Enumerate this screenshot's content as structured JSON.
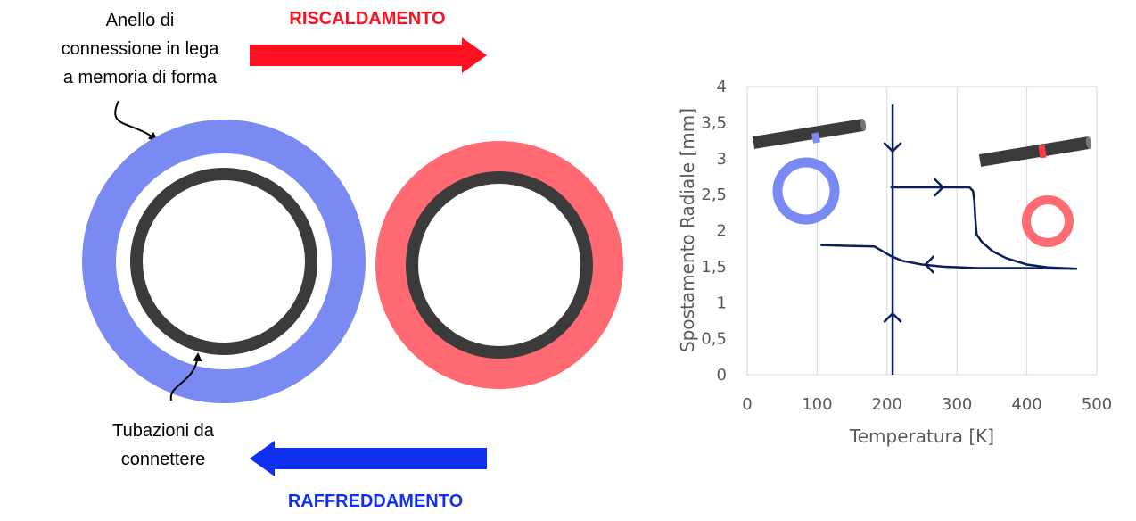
{
  "colors": {
    "cold_ring": "#7b8af2",
    "hot_ring": "#ff6a73",
    "pipe": "#3b3b3b",
    "heat_arrow": "#ff1020",
    "cool_arrow": "#1030f0",
    "curve": "#0b1f5c",
    "grid": "#d9d9d9",
    "axis_text": "#595959"
  },
  "labels": {
    "ring_label_lines": [
      "Anello di",
      "connessione in lega",
      "a memoria di forma"
    ],
    "pipe_label_lines": [
      "Tubazioni da",
      "connettere"
    ],
    "heating": "RISCALDAMENTO",
    "cooling": "RAFFREDDAMENTO"
  },
  "icons": [
    "heating-arrow-icon",
    "cooling-arrow-icon",
    "cold-ring-icon",
    "hot-ring-icon",
    "pipe-icon"
  ],
  "chart_data": {
    "type": "line",
    "xlabel": "Temperatura [K]",
    "ylabel": "Spostamento Radiale [mm]",
    "xlim": [
      0,
      500
    ],
    "ylim": [
      0,
      4
    ],
    "x_ticks": [
      "0",
      "100",
      "200",
      "300",
      "400",
      "500"
    ],
    "y_ticks": [
      "0",
      "0,5",
      "1",
      "1,5",
      "2",
      "2,5",
      "3",
      "3,5",
      "4"
    ],
    "grid": "vertical",
    "series": [
      {
        "values": [
          [
            205,
            2.6
          ],
          [
            300,
            2.6
          ],
          [
            318,
            2.6
          ],
          [
            323,
            2.55
          ],
          [
            325,
            2.4
          ],
          [
            326,
            2.2
          ],
          [
            328,
            1.95
          ],
          [
            335,
            1.85
          ],
          [
            350,
            1.72
          ],
          [
            370,
            1.62
          ],
          [
            400,
            1.53
          ],
          [
            430,
            1.49
          ],
          [
            472,
            1.47
          ]
        ]
      },
      {
        "values": [
          [
            472,
            1.47
          ],
          [
            400,
            1.48
          ],
          [
            330,
            1.48
          ],
          [
            280,
            1.5
          ],
          [
            250,
            1.53
          ],
          [
            222,
            1.58
          ],
          [
            205,
            1.65
          ],
          [
            182,
            1.78
          ],
          [
            140,
            1.79
          ],
          [
            105,
            1.8
          ]
        ]
      }
    ],
    "vertical_line_x": 208,
    "vertical_line_ymax": 3.75
  }
}
